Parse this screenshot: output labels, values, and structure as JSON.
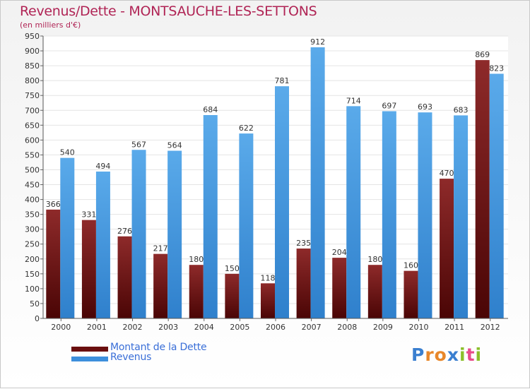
{
  "header": {
    "title": "Revenus/Dette - MONTSAUCHE-LES-SETTONS",
    "subtitle": "(en milliers d'€)"
  },
  "chart_data": {
    "type": "bar",
    "title": "Revenus/Dette - MONTSAUCHE-LES-SETTONS",
    "ylabel": "(en milliers d'€)",
    "xlabel": "",
    "ylim": [
      0,
      950
    ],
    "ytick_step": 50,
    "grid": true,
    "categories": [
      "2000",
      "2001",
      "2002",
      "2003",
      "2004",
      "2005",
      "2006",
      "2007",
      "2008",
      "2009",
      "2010",
      "2011",
      "2012"
    ],
    "series": [
      {
        "name": "Montant de la Dette",
        "color": "#7a1a1a",
        "values": [
          366,
          331,
          276,
          217,
          180,
          150,
          118,
          235,
          204,
          180,
          160,
          470,
          869
        ]
      },
      {
        "name": "Revenus",
        "color": "#4a9be0",
        "values": [
          540,
          494,
          567,
          564,
          684,
          622,
          781,
          912,
          714,
          697,
          693,
          683,
          823
        ]
      }
    ]
  },
  "legend": [
    {
      "label": "Montant de la Dette",
      "color": "#6a0f0f"
    },
    {
      "label": "Revenus",
      "color": "#3d8fdc"
    }
  ],
  "logo": {
    "letters": [
      "P",
      "r",
      "o",
      "x",
      "i",
      "t",
      "i"
    ],
    "colors": [
      "#3a7fd0",
      "#e8872a",
      "#e8872a",
      "#3a7fd0",
      "#8bbf2a",
      "#e84b8a",
      "#8bbf2a"
    ]
  }
}
